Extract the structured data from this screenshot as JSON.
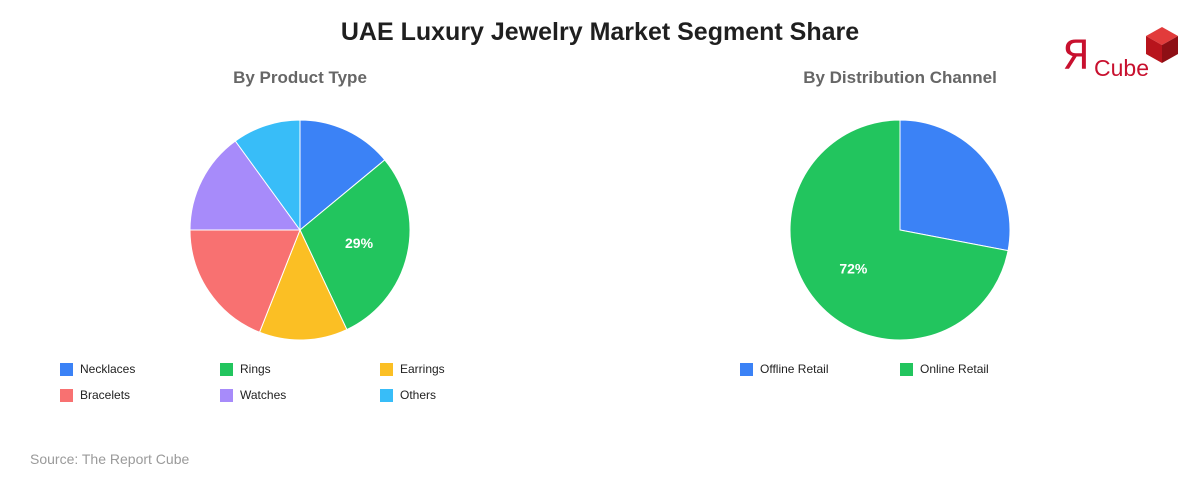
{
  "title": "UAE Luxury Jewelry Market Segment Share",
  "source": "Source: The Report Cube",
  "logo": {
    "mark": "Я",
    "text": "Cube",
    "color": "#c8102e",
    "icon": "cube-icon"
  },
  "chart_data": [
    {
      "type": "pie",
      "title": "By Product Type",
      "labels": [
        "Necklaces",
        "Rings",
        "Earrings",
        "Bracelets",
        "Watches",
        "Others"
      ],
      "values": [
        14,
        29,
        13,
        19,
        15,
        10
      ],
      "colors": [
        "#3b82f6",
        "#22c55e",
        "#fbbf24",
        "#f87171",
        "#a78bfa",
        "#38bdf8"
      ],
      "slice_order": [
        0,
        1,
        2,
        3,
        4,
        5
      ],
      "data_labels": [
        "",
        "29%",
        "",
        "",
        "",
        ""
      ],
      "legend_position": "bottom"
    },
    {
      "type": "pie",
      "title": "By Distribution Channel",
      "labels": [
        "Offline Retail",
        "Online Retail"
      ],
      "values": [
        28,
        72
      ],
      "colors": [
        "#3b82f6",
        "#22c55e"
      ],
      "data_labels": [
        "",
        "72%"
      ],
      "legend_position": "bottom"
    }
  ]
}
